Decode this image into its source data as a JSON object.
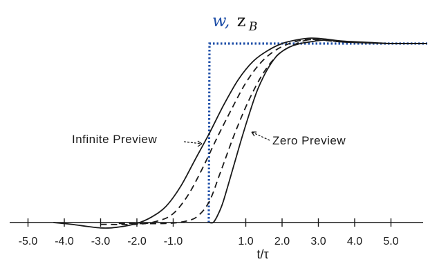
{
  "chart_data": {
    "type": "line",
    "title": "",
    "xlabel": "t/τ",
    "ylabel": {
      "w": "w,",
      "z": "z",
      "sub": "B"
    },
    "xlim": [
      -5.3,
      6.0
    ],
    "ylim": [
      -0.03,
      1.2
    ],
    "x_ticks": [
      -5.0,
      -4.0,
      -3.0,
      -2.0,
      -1.0,
      1.0,
      2.0,
      3.0,
      4.0,
      5.0
    ],
    "x_tick_labels": [
      "-5.0",
      "-4.0",
      "-3.0",
      "-2.0",
      "-1.0",
      "1.0",
      "2.0",
      "3.0",
      "4.0",
      "5.0"
    ],
    "grid": false,
    "colors": {
      "command": "#1f4fa8",
      "response": "#1a1a1a"
    },
    "series": [
      {
        "style": "dotted-blue",
        "x": [
          -0.02,
          -0.02,
          0.0,
          6.0
        ],
        "y": [
          0.0,
          0.0,
          1.0,
          1.0
        ]
      },
      {
        "style": "solid",
        "x": [
          -4.3,
          -3.8,
          -3.0,
          -2.5,
          -2.0,
          -1.6,
          -1.2,
          -0.8,
          -0.4,
          0.0,
          0.4,
          0.8,
          1.2,
          1.6,
          2.0,
          2.4,
          2.8,
          3.2,
          3.6,
          4.0,
          4.5,
          5.0,
          6.0
        ],
        "y": [
          0.0,
          -0.01,
          -0.03,
          -0.025,
          -0.005,
          0.03,
          0.09,
          0.2,
          0.35,
          0.5,
          0.66,
          0.8,
          0.9,
          0.96,
          1.0,
          1.02,
          1.03,
          1.025,
          1.015,
          1.01,
          1.005,
          1.0,
          1.0
        ]
      },
      {
        "style": "dashed",
        "x": [
          -3.0,
          -2.0,
          -1.4,
          -1.0,
          -0.6,
          -0.2,
          0.2,
          0.6,
          1.0,
          1.4,
          1.8,
          2.2,
          2.6,
          3.0,
          3.6,
          4.2,
          5.0,
          6.0
        ],
        "y": [
          -0.01,
          -0.01,
          0.01,
          0.05,
          0.15,
          0.3,
          0.47,
          0.63,
          0.78,
          0.89,
          0.96,
          1.0,
          1.02,
          1.02,
          1.01,
          1.005,
          1.0,
          1.0
        ]
      },
      {
        "style": "dashed",
        "x": [
          -2.5,
          -1.2,
          -0.6,
          -0.3,
          0.0,
          0.3,
          0.7,
          1.1,
          1.5,
          1.9,
          2.3,
          2.7,
          3.1,
          3.6,
          4.2,
          5.0,
          6.0
        ],
        "y": [
          -0.005,
          -0.005,
          0.01,
          0.04,
          0.12,
          0.28,
          0.5,
          0.69,
          0.84,
          0.94,
          0.99,
          1.02,
          1.02,
          1.01,
          1.005,
          1.0,
          1.0
        ]
      },
      {
        "style": "solid",
        "x": [
          0.0,
          0.1,
          0.2,
          0.35,
          0.5,
          0.7,
          0.9,
          1.1,
          1.3,
          1.5,
          1.7,
          1.9,
          2.2,
          2.5,
          2.8,
          3.2,
          3.6,
          4.2,
          5.0,
          6.0
        ],
        "y": [
          0.0,
          0.0,
          0.03,
          0.1,
          0.2,
          0.34,
          0.48,
          0.61,
          0.73,
          0.82,
          0.89,
          0.94,
          0.98,
          1.0,
          1.01,
          1.02,
          1.01,
          1.005,
          1.0,
          1.0
        ]
      }
    ],
    "annotations": [
      {
        "text": "Infinite Preview"
      },
      {
        "text": "Zero Preview"
      }
    ]
  }
}
